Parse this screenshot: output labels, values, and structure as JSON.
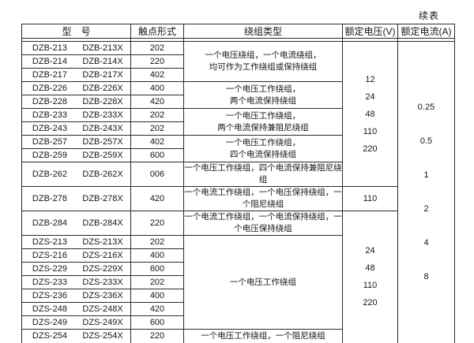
{
  "page": {
    "continued_label": "续表"
  },
  "table": {
    "headers": {
      "model": "型　号",
      "contact": "触点形式",
      "winding": "绕组类型",
      "voltage": "额定电压(V)",
      "current": "额定电流(A)"
    },
    "rows": [
      {
        "model_a": "DZB-213",
        "model_b": "DZB-213X",
        "contact": "202"
      },
      {
        "model_a": "DZB-214",
        "model_b": "DZB-214X",
        "contact": "220"
      },
      {
        "model_a": "DZB-217",
        "model_b": "DZB-217X",
        "contact": "402"
      },
      {
        "model_a": "DZB-226",
        "model_b": "DZB-226X",
        "contact": "400"
      },
      {
        "model_a": "DZB-228",
        "model_b": "DZB-228X",
        "contact": "420"
      },
      {
        "model_a": "DZB-233",
        "model_b": "DZB-233X",
        "contact": "202"
      },
      {
        "model_a": "DZB-243",
        "model_b": "DZB-243X",
        "contact": "202"
      },
      {
        "model_a": "DZB-257",
        "model_b": "DZB-257X",
        "contact": "402"
      },
      {
        "model_a": "DZB-259",
        "model_b": "DZB-259X",
        "contact": "600"
      },
      {
        "model_a": "DZB-262",
        "model_b": "DZB-262X",
        "contact": "006"
      },
      {
        "model_a": "DZB-278",
        "model_b": "DZB-278X",
        "contact": "420"
      },
      {
        "model_a": "DZB-284",
        "model_b": "DZB-284X",
        "contact": "220"
      },
      {
        "model_a": "DZS-213",
        "model_b": "DZS-213X",
        "contact": "202"
      },
      {
        "model_a": "DZS-216",
        "model_b": "DZS-216X",
        "contact": "400"
      },
      {
        "model_a": "DZS-229",
        "model_b": "DZS-229X",
        "contact": "600"
      },
      {
        "model_a": "DZS-233",
        "model_b": "DZS-233X",
        "contact": "202"
      },
      {
        "model_a": "DZS-236",
        "model_b": "DZS-236X",
        "contact": "400"
      },
      {
        "model_a": "DZS-248",
        "model_b": "DZS-248X",
        "contact": "420"
      },
      {
        "model_a": "DZS-249",
        "model_b": "DZS-249X",
        "contact": "600"
      },
      {
        "model_a": "DZS-254",
        "model_b": "DZS-254X",
        "contact": "220"
      }
    ],
    "winding_groups": {
      "g0": "一个电压绕组，一个电流绕组，\n均可作为工作绕组或保持绕组",
      "g1": "一个电压工作绕组，\n两个电流保持绕组",
      "g2": "一个电压工作绕组，\n两个电流保持兼阻尼绕组",
      "g3": "一个电压工作绕组，\n四个电流保持绕组",
      "g4": "一个电压工作绕组，四个电流保持兼阻尼绕组",
      "g5": "一个电流工作绕组，一个电压保持绕组，一个阻尼绕组",
      "g6": "一个电流工作绕组，一个电流保持绕组，一个电压保持绕组",
      "g7": "一个电压工作绕组",
      "g8": "一个电压工作绕组，一个阻尼绕组"
    },
    "voltage_groups": {
      "v0": "12\n24\n48\n110\n220",
      "v1": "110",
      "v2": "24\n48\n110\n220"
    },
    "current_column": "0.25\n0.5\n1\n2\n4\n8"
  }
}
